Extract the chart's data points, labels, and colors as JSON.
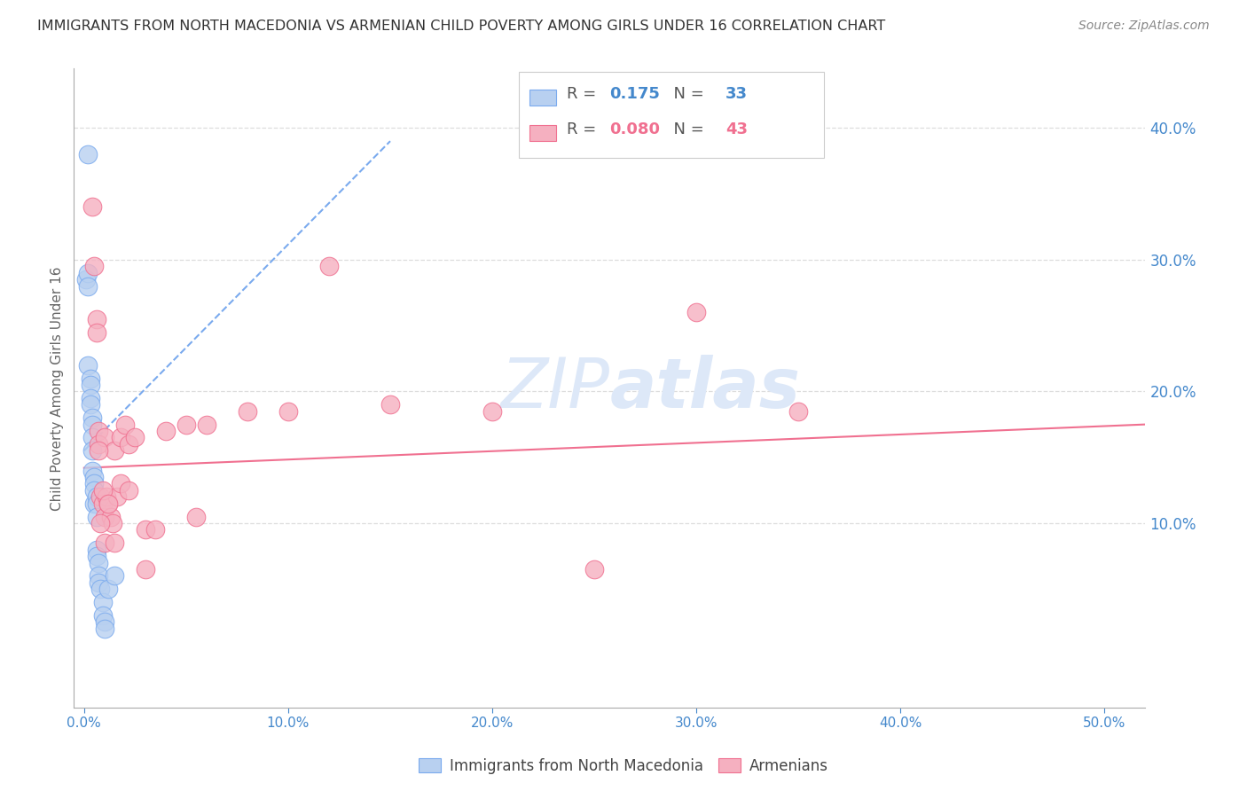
{
  "title": "IMMIGRANTS FROM NORTH MACEDONIA VS ARMENIAN CHILD POVERTY AMONG GIRLS UNDER 16 CORRELATION CHART",
  "source": "Source: ZipAtlas.com",
  "ylabel": "Child Poverty Among Girls Under 16",
  "x_tick_labels": [
    "0.0%",
    "10.0%",
    "20.0%",
    "30.0%",
    "40.0%",
    "50.0%"
  ],
  "x_tick_vals": [
    0.0,
    0.1,
    0.2,
    0.3,
    0.4,
    0.5
  ],
  "y_tick_labels": [
    "10.0%",
    "20.0%",
    "30.0%",
    "40.0%"
  ],
  "y_tick_vals": [
    0.1,
    0.2,
    0.3,
    0.4
  ],
  "xlim": [
    -0.005,
    0.52
  ],
  "ylim": [
    -0.04,
    0.445
  ],
  "legend_label1": "Immigrants from North Macedonia",
  "legend_label2": "Armenians",
  "legend_R1": "R = ",
  "legend_R1_val": "0.175",
  "legend_N1": "  N = ",
  "legend_N1_val": "33",
  "legend_R2": "R = ",
  "legend_R2_val": "0.080",
  "legend_N2": "  N = ",
  "legend_N2_val": "43",
  "color_blue": "#b8d0f0",
  "color_pink": "#f5b0c0",
  "trendline_blue_color": "#7aaaee",
  "trendline_pink_color": "#f07090",
  "watermark_color": "#dde8f8",
  "title_color": "#333333",
  "source_color": "#888888",
  "axis_color": "#4488cc",
  "ylabel_color": "#666666",
  "grid_color": "#dddddd",
  "blue_x": [
    0.001,
    0.002,
    0.002,
    0.002,
    0.003,
    0.003,
    0.003,
    0.003,
    0.004,
    0.004,
    0.004,
    0.004,
    0.004,
    0.005,
    0.005,
    0.005,
    0.005,
    0.006,
    0.006,
    0.006,
    0.006,
    0.006,
    0.007,
    0.007,
    0.007,
    0.008,
    0.009,
    0.009,
    0.01,
    0.01,
    0.012,
    0.015,
    0.002
  ],
  "blue_y": [
    0.285,
    0.29,
    0.28,
    0.22,
    0.21,
    0.205,
    0.195,
    0.19,
    0.18,
    0.175,
    0.165,
    0.155,
    0.14,
    0.135,
    0.13,
    0.125,
    0.115,
    0.12,
    0.115,
    0.105,
    0.08,
    0.075,
    0.07,
    0.06,
    0.055,
    0.05,
    0.04,
    0.03,
    0.025,
    0.02,
    0.05,
    0.06,
    0.38
  ],
  "pink_x": [
    0.004,
    0.005,
    0.006,
    0.006,
    0.007,
    0.007,
    0.008,
    0.009,
    0.01,
    0.01,
    0.011,
    0.012,
    0.013,
    0.014,
    0.015,
    0.016,
    0.018,
    0.02,
    0.022,
    0.025,
    0.03,
    0.035,
    0.04,
    0.05,
    0.06,
    0.08,
    0.1,
    0.12,
    0.15,
    0.2,
    0.25,
    0.3,
    0.35,
    0.007,
    0.008,
    0.009,
    0.01,
    0.012,
    0.015,
    0.018,
    0.022,
    0.03,
    0.055
  ],
  "pink_y": [
    0.34,
    0.295,
    0.255,
    0.245,
    0.17,
    0.16,
    0.12,
    0.115,
    0.105,
    0.165,
    0.12,
    0.115,
    0.105,
    0.1,
    0.155,
    0.12,
    0.165,
    0.175,
    0.16,
    0.165,
    0.095,
    0.095,
    0.17,
    0.175,
    0.175,
    0.185,
    0.185,
    0.295,
    0.19,
    0.185,
    0.065,
    0.26,
    0.185,
    0.155,
    0.1,
    0.125,
    0.085,
    0.115,
    0.085,
    0.13,
    0.125,
    0.065,
    0.105
  ],
  "blue_trend_start_x": 0.0,
  "blue_trend_start_y": 0.155,
  "blue_trend_end_x": 0.15,
  "blue_trend_end_y": 0.39,
  "pink_trend_start_x": 0.0,
  "pink_trend_start_y": 0.142,
  "pink_trend_end_x": 0.52,
  "pink_trend_end_y": 0.175
}
